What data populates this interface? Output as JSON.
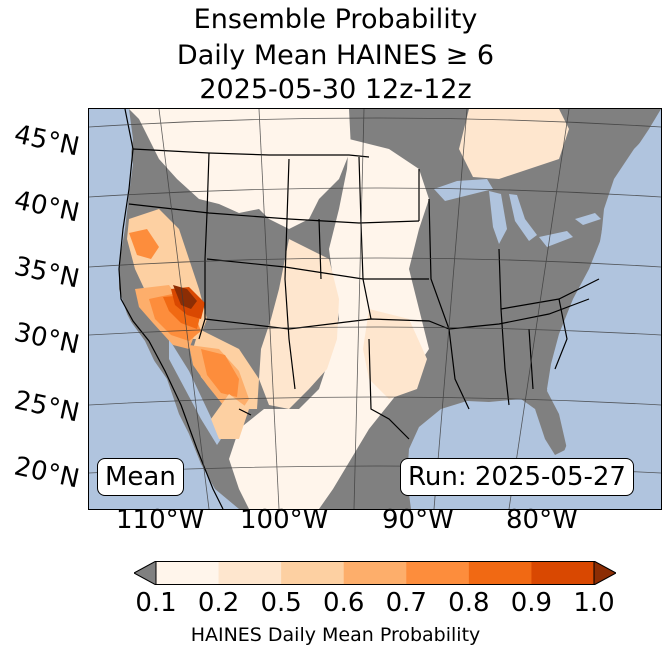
{
  "title": {
    "line1": "Ensemble Probability",
    "line2": "Daily Mean HAINES ≥ 6",
    "line3": "2025-05-30 12z-12z"
  },
  "map": {
    "lat_labels": [
      "45°N",
      "40°N",
      "35°N",
      "30°N",
      "25°N",
      "20°N"
    ],
    "lon_labels": [
      "110°W",
      "100°W",
      "90°W",
      "80°W"
    ],
    "stat_label": "Mean",
    "run_label": "Run: 2025-05-27",
    "colors": {
      "ocean": "#b0c4de",
      "no_data_land": "#808080",
      "borders": "#000000",
      "graticule": "#3a3a3a"
    }
  },
  "colorbar": {
    "ticks": [
      "0.1",
      "0.2",
      "0.5",
      "0.6",
      "0.7",
      "0.8",
      "0.9",
      "1.0"
    ],
    "colors": [
      "#fff5eb",
      "#fee6ce",
      "#fdd0a2",
      "#fdae6b",
      "#fd8d3c",
      "#f16913",
      "#d94801",
      "#8c2d04"
    ],
    "under_color": "#808080",
    "label": "HAINES Daily Mean Probability"
  }
}
